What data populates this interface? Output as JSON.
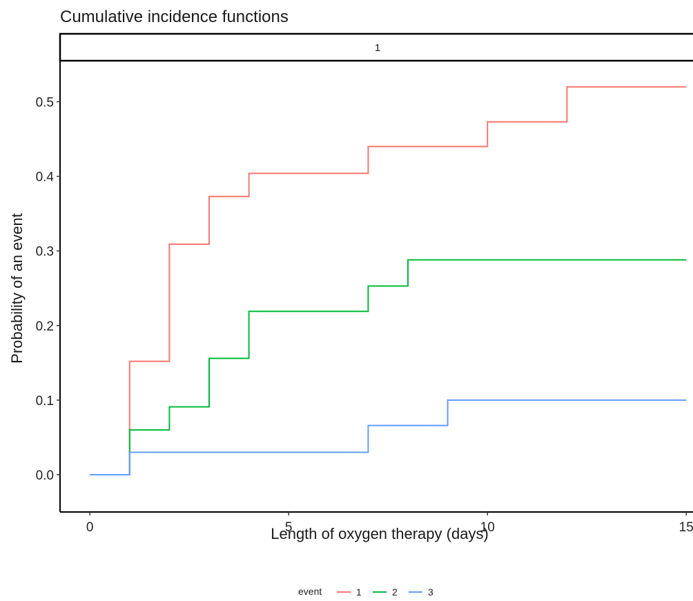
{
  "chart_data": {
    "type": "line",
    "step": true,
    "title": "Cumulative incidence functions",
    "facet_strip": "1",
    "xlabel": "Length of oxygen therapy (days)",
    "ylabel": "Probability of an event",
    "xlim": [
      -0.75,
      15.1
    ],
    "ylim": [
      -0.05,
      0.555
    ],
    "xticks": [
      0,
      5,
      10,
      15
    ],
    "xtick_labels": [
      "0",
      "5",
      "10",
      "15"
    ],
    "yticks": [
      0.0,
      0.1,
      0.2,
      0.3,
      0.4,
      0.5
    ],
    "ytick_labels": [
      "0.0",
      "0.1",
      "0.2",
      "0.3",
      "0.4",
      "0.5"
    ],
    "grid": false,
    "legend": {
      "title": "event",
      "position": "bottom"
    },
    "series": [
      {
        "name": "1",
        "color": "#F8766D",
        "x": [
          0,
          1,
          2,
          3,
          4,
          7,
          10,
          12,
          15
        ],
        "y": [
          0.0,
          0.152,
          0.309,
          0.373,
          0.404,
          0.44,
          0.473,
          0.52,
          0.52
        ]
      },
      {
        "name": "2",
        "color": "#00BA38",
        "x": [
          0,
          1,
          2,
          3,
          4,
          7,
          8,
          15
        ],
        "y": [
          0.0,
          0.06,
          0.091,
          0.156,
          0.219,
          0.253,
          0.288,
          0.288
        ]
      },
      {
        "name": "3",
        "color": "#619CFF",
        "x": [
          0,
          1,
          7,
          9,
          15
        ],
        "y": [
          0.0,
          0.03,
          0.066,
          0.1,
          0.1
        ]
      }
    ]
  }
}
